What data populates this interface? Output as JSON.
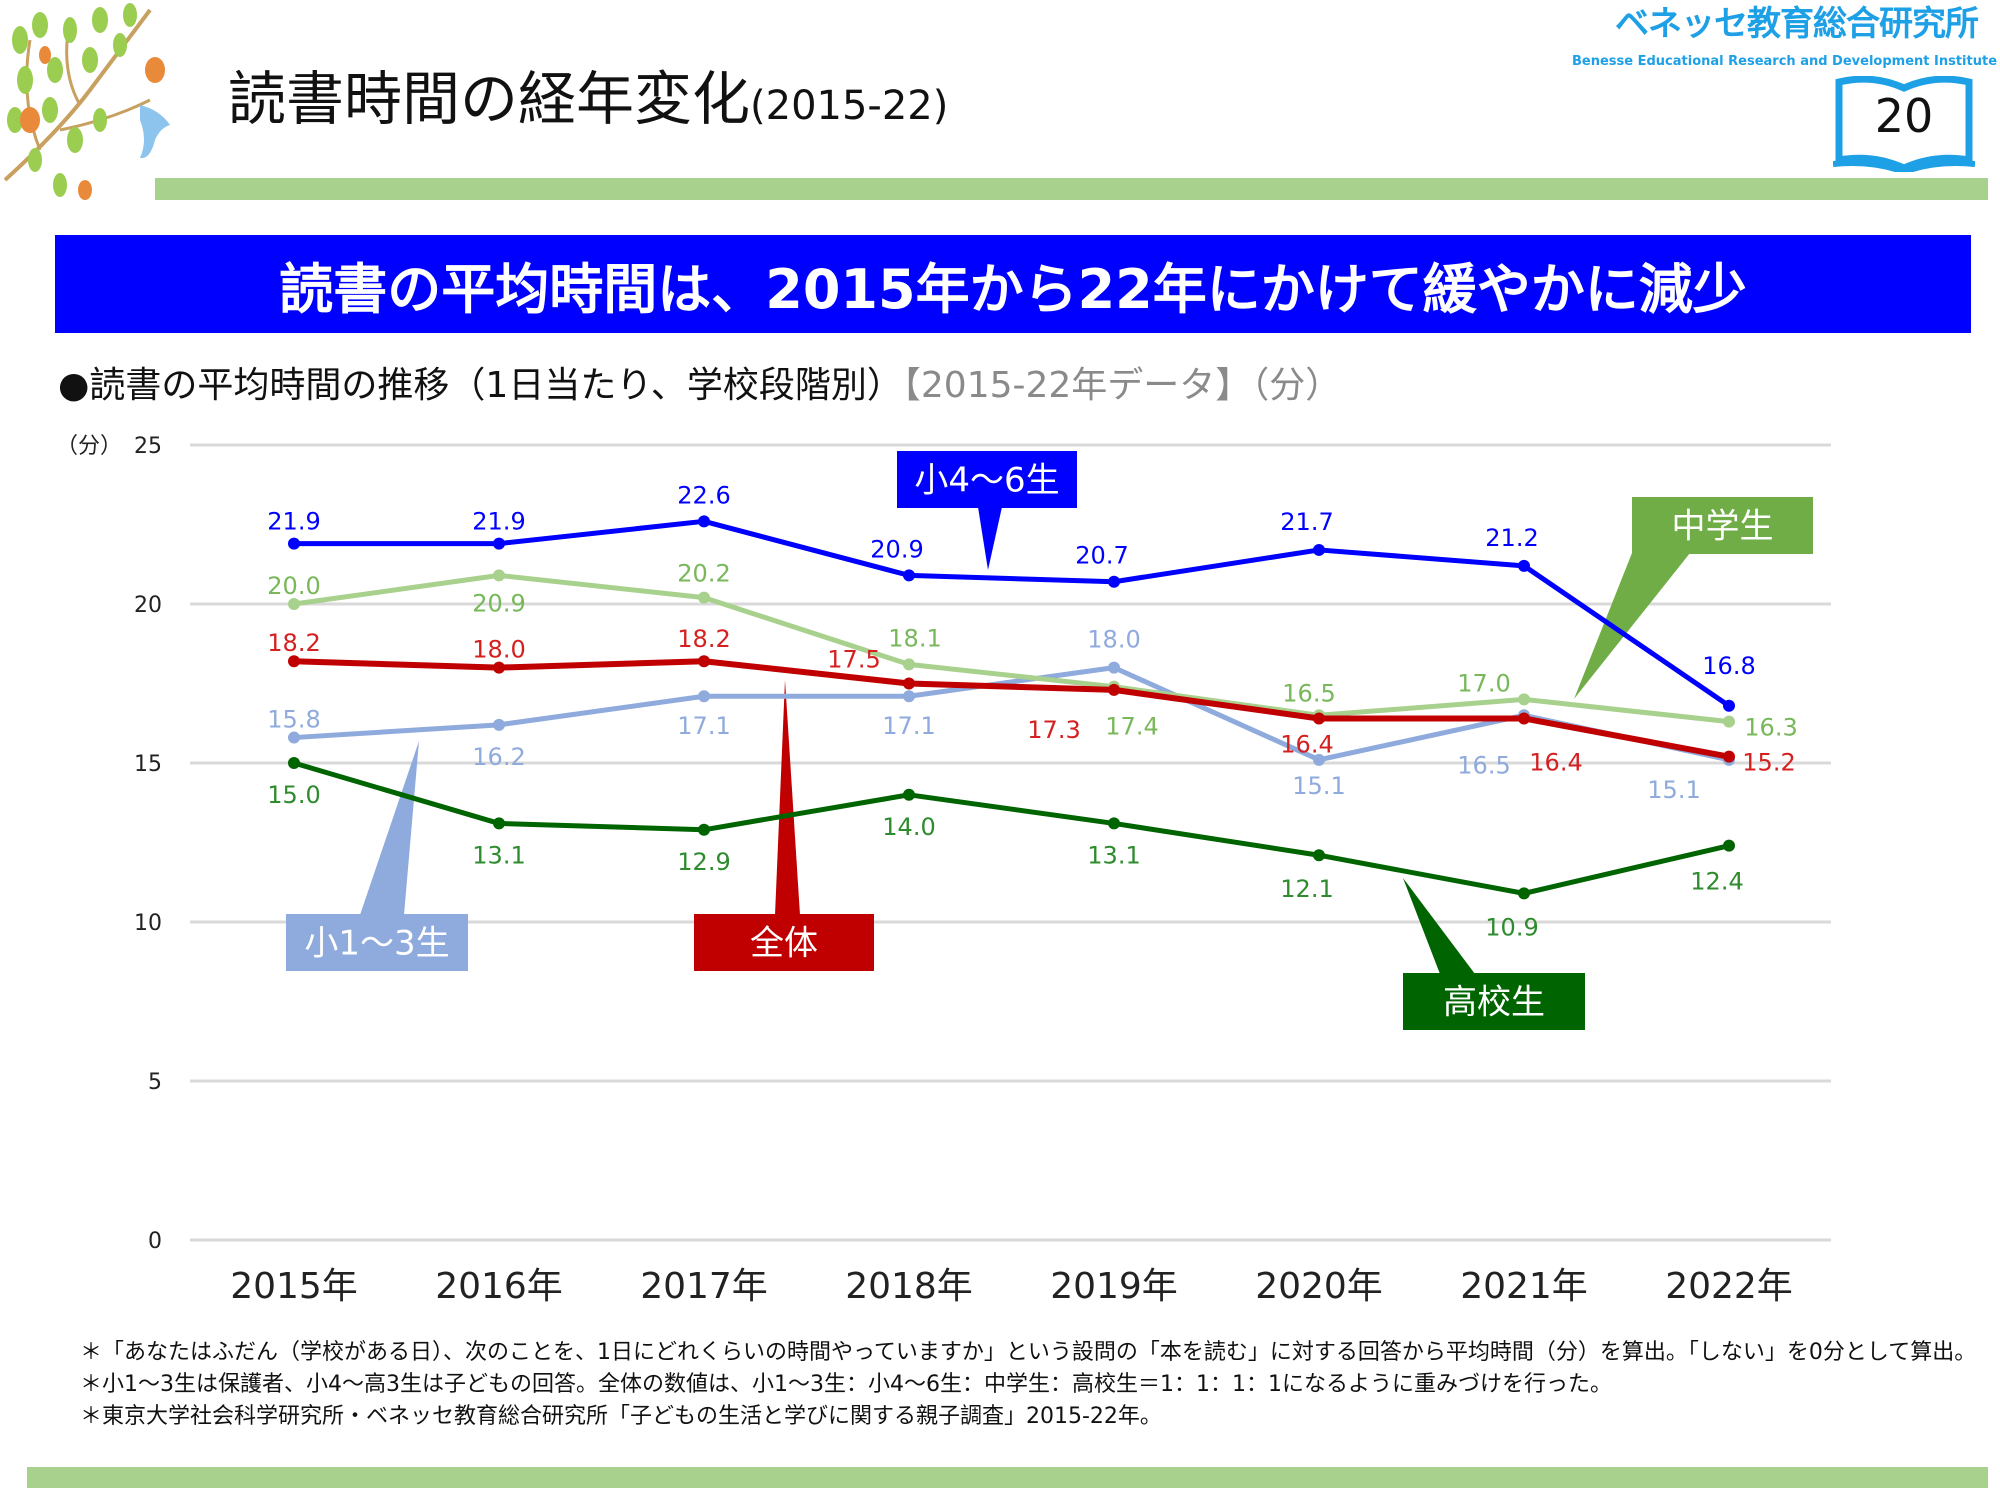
{
  "header": {
    "title": "読書時間の経年変化",
    "title_years": "(2015-22)",
    "logo_jp": "ベネッセ教育総合研究所",
    "logo_en": "Benesse  Educational Research and Development Institute",
    "page_number": "20"
  },
  "banner": "読書の平均時間は、2015年から22年にかけて緩やかに減少",
  "subtitle": {
    "main": "●読書の平均時間の推移（1日当たり、学校段階別）",
    "note": "【2015-22年データ】（分）"
  },
  "chart_data": {
    "type": "line",
    "ylabel": "（分）",
    "ylim": [
      0,
      25
    ],
    "yticks": [
      0,
      5,
      10,
      15,
      20,
      25
    ],
    "grid": true,
    "categories": [
      "2015年",
      "2016年",
      "2017年",
      "2018年",
      "2019年",
      "2020年",
      "2021年",
      "2022年"
    ],
    "series": [
      {
        "name": "小1～3生",
        "color": "#8faadc",
        "values": [
          15.8,
          16.2,
          17.1,
          17.1,
          18.0,
          15.1,
          16.5,
          15.1
        ]
      },
      {
        "name": "小4～6生",
        "color": "#0000ff",
        "values": [
          21.9,
          21.9,
          22.6,
          20.9,
          20.7,
          21.7,
          21.2,
          16.8
        ]
      },
      {
        "name": "中学生",
        "color": "#a9d18e",
        "label_color": "#78b85a",
        "values": [
          20.0,
          20.9,
          20.2,
          18.1,
          17.4,
          16.5,
          17.0,
          16.3
        ]
      },
      {
        "name": "高校生",
        "color": "#006400",
        "label_color": "#2e8b2e",
        "values": [
          15.0,
          13.1,
          12.9,
          14.0,
          13.1,
          12.1,
          10.9,
          12.4
        ]
      },
      {
        "name": "全体",
        "color": "#c00000",
        "label_color": "#d42020",
        "values": [
          18.2,
          18.0,
          18.2,
          17.5,
          17.3,
          16.4,
          16.4,
          15.2
        ]
      }
    ],
    "callout_colors": {
      "小1～3生": "#8faadc",
      "小4～6生": "#0000ff",
      "中学生": "#70ad47",
      "高校生": "#006400",
      "全体": "#c00000"
    }
  },
  "footnotes": [
    "＊「あなたはふだん（学校がある日）、次のことを、1日にどれくらいの時間やっていますか」という設問の「本を読む」に対する回答から平均時間（分）を算出。「しない」を0分として算出。",
    "＊小1～3生は保護者、小4～高3生は子どもの回答。全体の数値は、小1～3生：小4～6生：中学生：高校生＝1：1：1：1になるように重みづけを行った。",
    "＊東京大学社会科学研究所・ベネッセ教育総合研究所「子どもの生活と学びに関する親子調査」2015-22年。"
  ]
}
